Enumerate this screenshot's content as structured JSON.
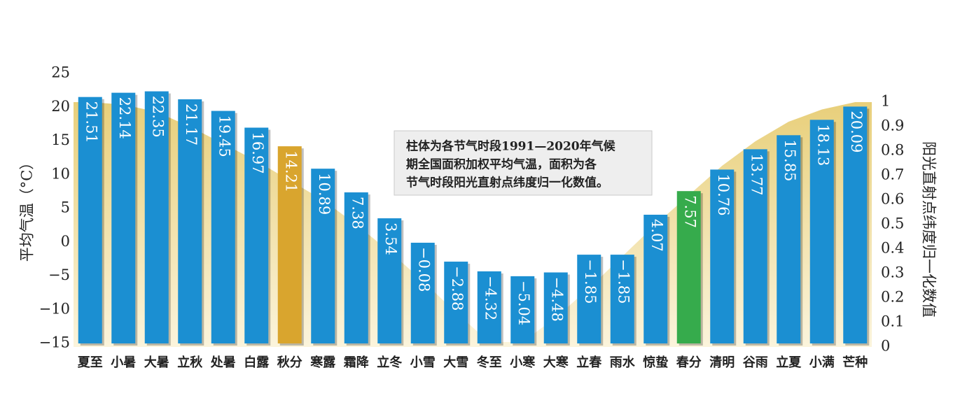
{
  "chart_data": {
    "type": "bar",
    "y_label": "平均气温（°C）",
    "y2_label": "阳光直射点纬度归一化数值",
    "annotation": [
      "柱体为各节气时段1991—2020年气候",
      "期全国面积加权平均气温，面积为各",
      "节气时段阳光直射点纬度归一化数值。"
    ],
    "categories": [
      "夏至",
      "小暑",
      "大暑",
      "立秋",
      "处暑",
      "白露",
      "秋分",
      "寒露",
      "霜降",
      "立冬",
      "小雪",
      "大雪",
      "冬至",
      "小寒",
      "大寒",
      "立春",
      "雨水",
      "惊蛰",
      "春分",
      "清明",
      "谷雨",
      "立夏",
      "小满",
      "芒种"
    ],
    "series": [
      {
        "type": "bar",
        "values": [
          21.51,
          22.14,
          22.35,
          21.17,
          19.45,
          16.97,
          14.21,
          10.89,
          7.38,
          3.54,
          -0.08,
          -2.88,
          -4.32,
          -5.04,
          -4.48,
          -1.85,
          -1.85,
          4.07,
          7.57,
          10.76,
          13.77,
          15.85,
          18.13,
          20.09
        ],
        "value_labels": [
          "21.51",
          "22.14",
          "22.35",
          "21.17",
          "19.45",
          "16.97",
          "14.21",
          "10.89",
          "7.38",
          "3.54",
          "−0.08",
          "−2.88",
          "−4.32",
          "−5.04",
          "−4.48",
          "−1.85",
          "−1.85",
          "4.07",
          "7.57",
          "10.76",
          "13.77",
          "15.85",
          "18.13",
          "20.09"
        ],
        "colors": [
          "#1b8fd2",
          "#1b8fd2",
          "#1b8fd2",
          "#1b8fd2",
          "#1b8fd2",
          "#1b8fd2",
          "#d9a52e",
          "#1b8fd2",
          "#1b8fd2",
          "#1b8fd2",
          "#1b8fd2",
          "#1b8fd2",
          "#1b8fd2",
          "#1b8fd2",
          "#1b8fd2",
          "#1b8fd2",
          "#1b8fd2",
          "#1b8fd2",
          "#36ab4c",
          "#1b8fd2",
          "#1b8fd2",
          "#1b8fd2",
          "#1b8fd2",
          "#1b8fd2"
        ]
      },
      {
        "type": "area",
        "axis": "y2",
        "color": "#ecd68e",
        "values": [
          1.0,
          0.99,
          0.96,
          0.9,
          0.83,
          0.76,
          0.68,
          0.6,
          0.5,
          0.39,
          0.27,
          0.14,
          0.02,
          0.02,
          0.12,
          0.24,
          0.37,
          0.5,
          0.62,
          0.74,
          0.84,
          0.92,
          0.97,
          1.0
        ]
      }
    ],
    "ylim": [
      -15,
      25
    ],
    "yticks": [
      {
        "value": -15,
        "label": "−15"
      },
      {
        "value": -10,
        "label": "−10"
      },
      {
        "value": -5,
        "label": "−5"
      },
      0,
      5,
      10,
      15,
      20,
      25
    ],
    "y2lim": [
      0,
      1
    ],
    "y2ticks": [
      0,
      0.1,
      0.2,
      0.3,
      0.4,
      0.5,
      0.6,
      0.7,
      0.8,
      0.9,
      1
    ]
  }
}
